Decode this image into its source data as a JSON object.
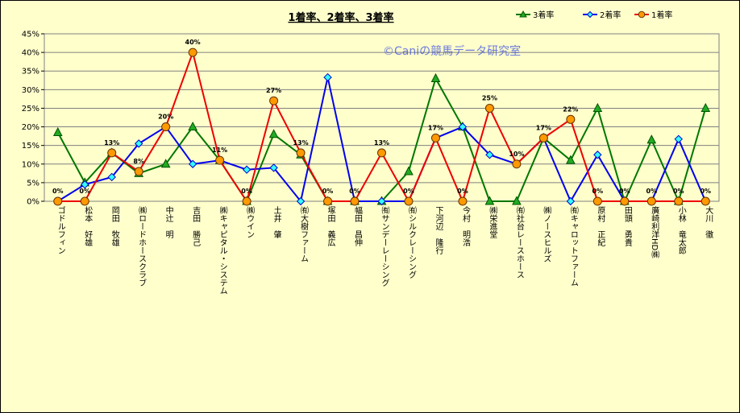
{
  "chart_data": {
    "type": "line",
    "title": "1着率、2着率、3着率",
    "watermark": "©Caniの競馬データ研究室",
    "categories": [
      "ゴドルフィン",
      "松本　好雄",
      "岡田　牧雄",
      "㈱ロードホースクラブ",
      "中辻　明",
      "吉田　勝己",
      "㈱キャピタル・システム",
      "㈱ウイン",
      "土井　肇",
      "㈲大樹ファーム",
      "塚田　義広",
      "幅田　昌伸",
      "㈲サンデーレーシング",
      "㈲シルクレーシング",
      "下河辺　隆行",
      "今村　明浩",
      "㈱栄進堂",
      "㈲社台レースホース",
      "㈱ノースヒルズ",
      "㈲キャロットファーム",
      "原村　正紀",
      "田頭　勇貴",
      "廣崎利洋HD㈱",
      "小林　竜太郎",
      "大川　徹"
    ],
    "y_ticks": [
      "0%",
      "5%",
      "10%",
      "15%",
      "20%",
      "25%",
      "30%",
      "35%",
      "40%",
      "45%"
    ],
    "ylim": [
      0,
      45
    ],
    "grid": "horizontal",
    "legend_position": "top-right",
    "series": [
      {
        "name": "3着率",
        "color": "#007700",
        "marker": "triangle",
        "values": [
          18.5,
          5,
          13,
          7.5,
          10,
          20,
          11,
          0,
          18,
          12.5,
          0,
          0,
          0,
          8,
          33,
          20,
          0,
          0,
          17,
          11,
          25,
          0,
          16.5,
          0,
          25
        ]
      },
      {
        "name": "2着率",
        "color": "#0000ee",
        "marker": "diamond",
        "values": [
          0,
          4.5,
          6.5,
          15.5,
          20,
          10,
          11,
          8.5,
          9,
          0,
          33.3,
          0,
          0,
          0,
          17,
          20,
          12.5,
          10,
          17,
          0,
          12.5,
          0,
          0,
          16.7,
          0
        ]
      },
      {
        "name": "1着率",
        "color": "#ee0000",
        "marker": "circle",
        "values": [
          0,
          0,
          13,
          8,
          20,
          40,
          11,
          0,
          27,
          13,
          0,
          0,
          13,
          0,
          17,
          0,
          25,
          10,
          17,
          22,
          0,
          0,
          0,
          0,
          0
        ]
      }
    ],
    "data_labels": [
      "0%",
      "0%",
      "13%",
      "8%",
      "20%",
      "40%",
      "11%",
      "0%",
      "27%",
      "13%",
      "0%",
      "0%",
      "13%",
      "0%",
      "17%",
      "0%",
      "25%",
      "10%",
      "17%",
      "22%",
      "0%",
      "0%",
      "0%",
      "0%",
      "0%"
    ]
  }
}
